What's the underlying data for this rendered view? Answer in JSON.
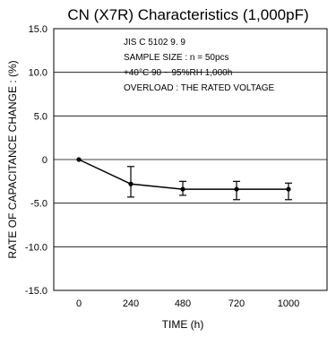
{
  "chart_data": {
    "type": "line",
    "title": "CN (X7R) Characteristics (1,000pF)",
    "xlabel": "TIME  (h)",
    "ylabel": "RATE OF CAPACITANCE CHANGE : (%)",
    "x_categories": [
      "0",
      "240",
      "480",
      "720",
      "1000"
    ],
    "ylim": [
      -15,
      15
    ],
    "y_ticks": [
      {
        "value": 15,
        "label": "15.0"
      },
      {
        "value": 10,
        "label": "10.0"
      },
      {
        "value": 5,
        "label": "5.0"
      },
      {
        "value": 0,
        "label": "0"
      },
      {
        "value": -5,
        "label": "-5.0"
      },
      {
        "value": -10,
        "label": "-10.0"
      },
      {
        "value": -15,
        "label": "-15.0"
      }
    ],
    "grid": "horizontal",
    "annotations": [
      "JIS C 5102 9. 9",
      "SAMPLE SIZE : n = 50pcs",
      "+40°C 90 ~ 95%RH  1,000h",
      "OVERLOAD : THE RATED VOLTAGE"
    ],
    "series": [
      {
        "values": [
          0,
          -2.8,
          -3.4,
          -3.4,
          -3.4
        ],
        "error_low": [
          0,
          -4.3,
          -4.1,
          -4.6,
          -4.6
        ],
        "error_high": [
          0,
          -0.8,
          -2.5,
          -2.5,
          -2.7
        ]
      }
    ]
  }
}
